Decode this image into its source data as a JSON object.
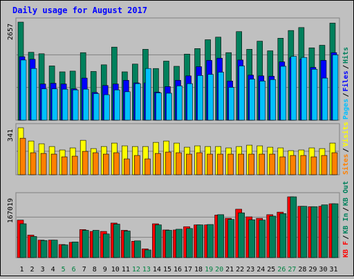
{
  "title": "Daily usage for August 2017",
  "colors": {
    "background": "#c0c0c0",
    "panel": "#c0c0c0",
    "grid": "#808080",
    "title": "#0000ff",
    "day_weekday": "#000000",
    "day_weekend": "#008040",
    "hits": "#00805c",
    "files": "#0000ff",
    "pages": "#00c0ff",
    "visits": "#ffff00",
    "sites": "#ff8000",
    "kb_in": "#00805c",
    "kb_out": "#00805c",
    "kb_f": "#ff0000"
  },
  "chart_data": [
    {
      "type": "bar",
      "panel": "hits-files-pages",
      "max_label": "2657",
      "legend": [
        {
          "label": "Pages",
          "color": "#00c0ff"
        },
        {
          "label": "Files",
          "color": "#0000ff"
        },
        {
          "label": "Hits",
          "color": "#00805c"
        }
      ],
      "ylim": [
        0,
        2657
      ],
      "categories": [
        "1",
        "2",
        "3",
        "4",
        "5",
        "6",
        "7",
        "8",
        "9",
        "10",
        "11",
        "12",
        "13",
        "14",
        "15",
        "16",
        "17",
        "18",
        "19",
        "20",
        "21",
        "22",
        "23",
        "24",
        "25",
        "26",
        "27",
        "28",
        "29",
        "30",
        "31"
      ],
      "weekend": [
        false,
        false,
        false,
        false,
        true,
        true,
        false,
        false,
        false,
        false,
        false,
        true,
        true,
        false,
        false,
        false,
        false,
        false,
        true,
        true,
        false,
        false,
        false,
        false,
        false,
        true,
        true,
        false,
        false,
        false,
        false
      ],
      "series": [
        {
          "name": "Hits",
          "values": [
            2657,
            1840,
            1800,
            1470,
            1310,
            1330,
            1830,
            1320,
            1500,
            1980,
            1310,
            1520,
            1920,
            1400,
            1600,
            1460,
            1790,
            1940,
            2180,
            2250,
            1830,
            2400,
            1920,
            2140,
            1880,
            2220,
            2430,
            2510,
            1960,
            2030,
            2630
          ]
        },
        {
          "name": "Files",
          "values": [
            1720,
            1650,
            980,
            1000,
            980,
            850,
            1140,
            750,
            940,
            980,
            1080,
            1010,
            1010,
            760,
            910,
            1080,
            1200,
            1450,
            1620,
            1680,
            1060,
            1630,
            1220,
            1200,
            1190,
            1580,
            1690,
            1650,
            1430,
            1620,
            1830
          ]
        },
        {
          "name": "Pages",
          "values": [
            1630,
            1400,
            850,
            850,
            840,
            820,
            840,
            720,
            690,
            820,
            770,
            990,
            1400,
            740,
            730,
            930,
            990,
            1210,
            1240,
            1300,
            890,
            1470,
            1110,
            1060,
            1100,
            1460,
            1730,
            1700,
            1380,
            1140,
            1770
          ]
        }
      ]
    },
    {
      "type": "bar",
      "panel": "visits-sites",
      "max_label": "341",
      "legend": [
        {
          "label": "Sites",
          "color": "#ff8000"
        },
        {
          "label": "Visits",
          "color": "#ffff00"
        }
      ],
      "ylim": [
        0,
        341
      ],
      "categories": [
        "1",
        "2",
        "3",
        "4",
        "5",
        "6",
        "7",
        "8",
        "9",
        "10",
        "11",
        "12",
        "13",
        "14",
        "15",
        "16",
        "17",
        "18",
        "19",
        "20",
        "21",
        "22",
        "23",
        "24",
        "25",
        "26",
        "27",
        "28",
        "29",
        "30",
        "31"
      ],
      "series": [
        {
          "name": "Visits",
          "values": [
            341,
            245,
            225,
            205,
            180,
            195,
            250,
            190,
            205,
            230,
            210,
            205,
            205,
            235,
            245,
            230,
            200,
            210,
            205,
            205,
            195,
            205,
            215,
            210,
            200,
            195,
            175,
            180,
            195,
            190,
            230
          ]
        },
        {
          "name": "Sites",
          "values": [
            265,
            160,
            155,
            150,
            130,
            135,
            170,
            160,
            150,
            160,
            115,
            140,
            115,
            155,
            165,
            160,
            150,
            160,
            150,
            150,
            150,
            150,
            150,
            150,
            150,
            130,
            140,
            140,
            130,
            140,
            160
          ]
        }
      ]
    },
    {
      "type": "bar",
      "panel": "kbf-kbin-kbout",
      "max_label": "167019",
      "legend": [
        {
          "label": "KB F",
          "color": "#ff0000"
        },
        {
          "label": "KB In",
          "color": "#00805c"
        },
        {
          "label": "KB Out",
          "color": "#00805c"
        }
      ],
      "ylim": [
        0,
        167019
      ],
      "categories": [
        "1",
        "2",
        "3",
        "4",
        "5",
        "6",
        "7",
        "8",
        "9",
        "10",
        "11",
        "12",
        "13",
        "14",
        "15",
        "16",
        "17",
        "18",
        "19",
        "20",
        "21",
        "22",
        "23",
        "24",
        "25",
        "26",
        "27",
        "28",
        "29",
        "30",
        "31"
      ],
      "series": [
        {
          "name": "KB F",
          "values": [
            103000,
            62000,
            48000,
            48000,
            36000,
            42000,
            77000,
            72000,
            72000,
            95000,
            75000,
            45000,
            24000,
            93000,
            76000,
            76000,
            85000,
            90000,
            90000,
            117000,
            108000,
            133000,
            112000,
            108000,
            118000,
            125000,
            167019,
            141000,
            140000,
            141000,
            148000
          ]
        },
        {
          "name": "KB In",
          "values": [
            93000,
            58000,
            47000,
            48000,
            35000,
            43000,
            75000,
            75000,
            65000,
            92000,
            73000,
            46000,
            21000,
            90000,
            75000,
            78000,
            80000,
            90000,
            91000,
            118000,
            105000,
            123000,
            104000,
            103000,
            114000,
            121000,
            167019,
            141000,
            140000,
            145000,
            148000
          ]
        }
      ]
    }
  ]
}
